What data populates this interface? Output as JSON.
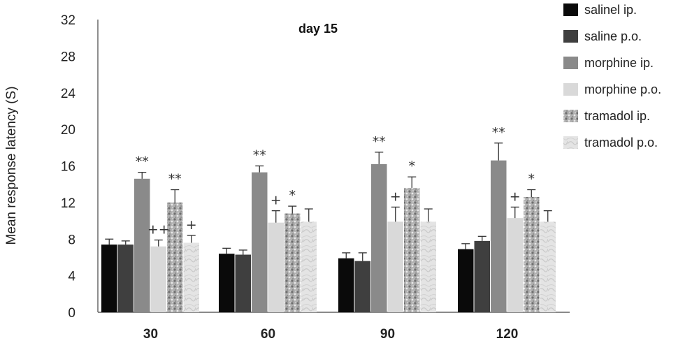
{
  "chart_data": {
    "type": "bar",
    "title": "day 15",
    "xlabel": "",
    "ylabel": "Mean response latency (S)",
    "ylim": [
      0,
      32
    ],
    "yticks": [
      "0",
      "4",
      "8",
      "12",
      "16",
      "20",
      "24",
      "28",
      "32"
    ],
    "categories": [
      "30",
      "60",
      "90",
      "120"
    ],
    "legend_position": "right",
    "series": [
      {
        "name": "salinel ip.",
        "color": "#0a0a0a",
        "pattern": "solid",
        "values": [
          7.4,
          6.4,
          5.9,
          6.9
        ],
        "errors": [
          0.6,
          0.6,
          0.6,
          0.6
        ],
        "annotations": [
          "",
          "",
          "",
          ""
        ]
      },
      {
        "name": "saline p.o.",
        "color": "#3f3f3f",
        "pattern": "solid",
        "values": [
          7.4,
          6.3,
          5.6,
          7.8
        ],
        "errors": [
          0.4,
          0.5,
          0.9,
          0.5
        ],
        "annotations": [
          "",
          "",
          "",
          ""
        ]
      },
      {
        "name": "morphine ip.",
        "color": "#8a8a8a",
        "pattern": "solid",
        "values": [
          14.6,
          15.3,
          16.2,
          16.6
        ],
        "errors": [
          0.7,
          0.7,
          1.3,
          1.9
        ],
        "annotations": [
          "**",
          "**",
          "**",
          "**"
        ]
      },
      {
        "name": "morphine p.o.",
        "color": "#d9d9d9",
        "pattern": "solid",
        "values": [
          7.2,
          9.8,
          9.9,
          10.3
        ],
        "errors": [
          0.7,
          1.3,
          1.6,
          1.2
        ],
        "annotations": [
          "++",
          "+",
          "+",
          "+"
        ]
      },
      {
        "name": "tramadol ip.",
        "color": "#b5b5b5",
        "pattern": "speckled",
        "values": [
          12.0,
          10.8,
          13.6,
          12.6
        ],
        "errors": [
          1.4,
          0.8,
          1.2,
          0.8
        ],
        "annotations": [
          "**",
          "*",
          "*",
          "*"
        ]
      },
      {
        "name": "tramadol p.o.",
        "color": "#e3e3e3",
        "pattern": "swirl",
        "values": [
          7.6,
          9.9,
          9.9,
          9.9
        ],
        "errors": [
          0.8,
          1.4,
          1.4,
          1.2
        ],
        "annotations": [
          "+",
          "",
          "",
          ""
        ]
      }
    ]
  }
}
